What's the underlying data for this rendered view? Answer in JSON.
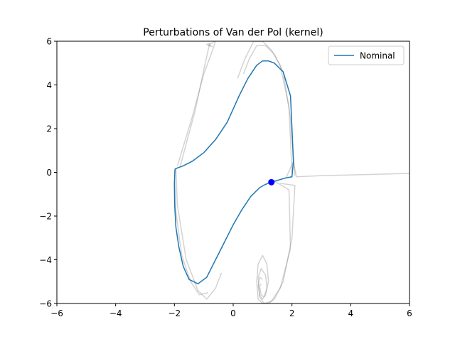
{
  "chart_data": {
    "type": "line",
    "title": "Perturbations of Van der Pol (kernel)",
    "xlabel": "",
    "ylabel": "",
    "xlim": [
      -6,
      6
    ],
    "ylim": [
      -6,
      6
    ],
    "xticks": [
      -6,
      -4,
      -2,
      0,
      2,
      4,
      6
    ],
    "yticks": [
      -6,
      -4,
      -2,
      0,
      2,
      4,
      6
    ],
    "grid": false,
    "legend": {
      "placement": "top-right",
      "entries": [
        "Nominal"
      ]
    },
    "colors": {
      "nominal": "#1f77b4",
      "perturbed": "#808080",
      "start_point": "#0000ff"
    },
    "series": [
      {
        "name": "Nominal",
        "role": "nominal",
        "x": [
          1.3,
          1.8,
          2.0,
          2.05,
          2.0,
          1.95,
          1.7,
          1.4,
          1.2,
          1.0,
          0.8,
          0.5,
          0.2,
          -0.2,
          -0.6,
          -1.0,
          -1.4,
          -1.7,
          -1.9,
          -1.98,
          -2.0,
          -1.99,
          -1.95,
          -1.85,
          -1.7,
          -1.5,
          -1.2,
          -0.9,
          -0.6,
          -0.3,
          0.0,
          0.3,
          0.6,
          0.9,
          1.1,
          1.3
        ],
        "y": [
          -0.45,
          -0.25,
          -0.2,
          0.5,
          2.0,
          3.5,
          4.6,
          5.0,
          5.1,
          5.1,
          4.9,
          4.3,
          3.5,
          2.3,
          1.5,
          0.9,
          0.5,
          0.3,
          0.2,
          0.15,
          -0.5,
          -1.5,
          -2.5,
          -3.4,
          -4.3,
          -4.9,
          -5.1,
          -4.8,
          -4.0,
          -3.2,
          -2.4,
          -1.7,
          -1.1,
          -0.7,
          -0.55,
          -0.45
        ]
      },
      {
        "name": "",
        "role": "perturbed",
        "x": [
          1.3,
          1.8,
          2.05,
          2.15,
          3.0,
          4.5,
          6.0
        ],
        "y": [
          -0.45,
          -0.25,
          0.5,
          -0.2,
          -0.15,
          -0.1,
          -0.05
        ]
      },
      {
        "name": "",
        "role": "perturbed",
        "x": [
          1.6,
          2.1,
          2.0,
          1.7,
          1.4,
          1.2,
          1.0,
          0.85,
          0.8,
          0.85,
          1.0,
          1.15,
          1.2,
          1.1,
          1.0,
          0.9,
          0.85,
          0.9,
          1.0
        ],
        "y": [
          -0.5,
          -0.6,
          -3.0,
          -5.0,
          -5.8,
          -6.0,
          -6.0,
          -5.8,
          -5.0,
          -4.2,
          -3.8,
          -4.2,
          -5.0,
          -5.6,
          -5.8,
          -5.6,
          -5.2,
          -4.8,
          -4.9
        ]
      },
      {
        "name": "",
        "role": "perturbed",
        "x": [
          1.4,
          1.9,
          1.95,
          1.6,
          1.3,
          1.05,
          0.9,
          0.85,
          0.95,
          1.1,
          1.15,
          1.05,
          0.95,
          0.9,
          0.95
        ],
        "y": [
          -0.4,
          -0.8,
          -3.5,
          -5.3,
          -5.9,
          -6.0,
          -5.7,
          -4.8,
          -4.4,
          -4.7,
          -5.3,
          -5.7,
          -5.6,
          -5.2,
          -5.1
        ]
      },
      {
        "name": "",
        "role": "perturbed",
        "x": [
          -1.95,
          -1.9,
          -1.6,
          -1.2,
          -0.9,
          -0.6,
          -0.4
        ],
        "y": [
          0.2,
          -1.5,
          -4.0,
          -5.4,
          -5.8,
          -5.3,
          -4.6
        ]
      },
      {
        "name": "",
        "role": "perturbed",
        "x": [
          -2.0,
          -1.95,
          -1.75,
          -1.45,
          -1.15,
          -0.85
        ],
        "y": [
          0.1,
          -1.8,
          -3.8,
          -5.0,
          -5.6,
          -5.5
        ]
      },
      {
        "name": "",
        "role": "perturbed",
        "x": [
          -1.9,
          -1.4,
          -1.0,
          -0.7,
          -0.6,
          -0.75,
          -0.85,
          -0.7
        ],
        "y": [
          0.3,
          2.5,
          4.5,
          5.6,
          6.0,
          5.9,
          5.8,
          5.75
        ]
      },
      {
        "name": "",
        "role": "perturbed",
        "x": [
          -1.8,
          -1.3,
          -0.95,
          -0.8,
          -0.9,
          -0.75
        ],
        "y": [
          0.3,
          2.8,
          5.0,
          5.9,
          5.85,
          5.8
        ]
      },
      {
        "name": "",
        "role": "perturbed",
        "x": [
          2.0,
          1.9,
          1.6,
          1.3,
          1.0,
          0.7,
          0.4,
          0.15
        ],
        "y": [
          0.0,
          3.0,
          4.9,
          5.6,
          6.0,
          6.0,
          5.2,
          4.3
        ]
      },
      {
        "name": "",
        "role": "perturbed",
        "x": [
          2.1,
          1.95,
          1.7,
          1.4,
          1.1,
          0.8,
          0.55,
          0.35
        ],
        "y": [
          -0.15,
          2.5,
          4.6,
          5.4,
          5.8,
          5.8,
          5.2,
          4.5
        ]
      }
    ],
    "start_point": {
      "x": 1.3,
      "y": -0.45
    }
  }
}
